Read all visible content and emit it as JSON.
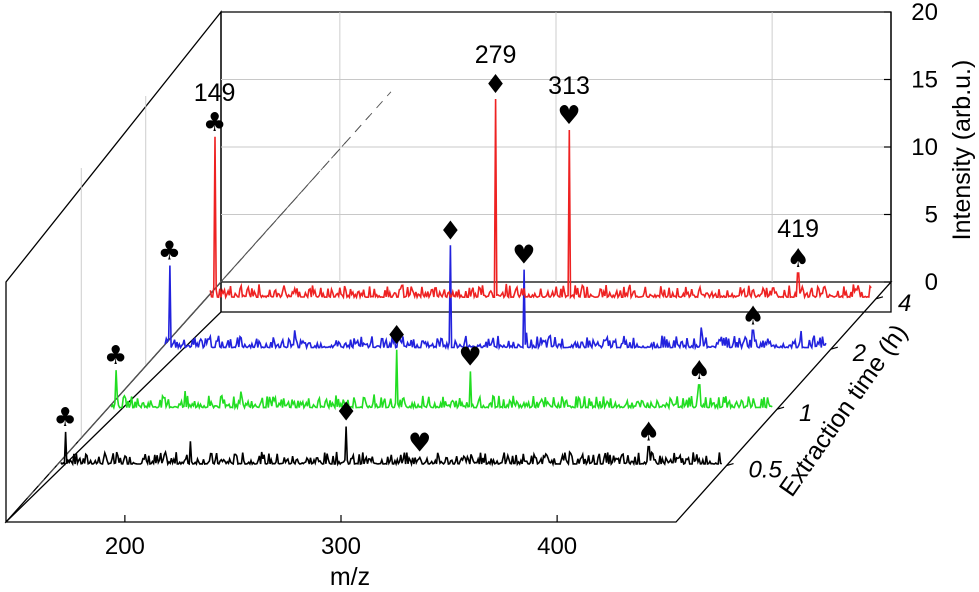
{
  "chart_data": {
    "type": "line",
    "subtype": "waterfall-3d",
    "xlabel": "m/z",
    "ylabel": "Intensity (arb.u.)",
    "zlabel": "Extraction time (h)",
    "xlim": [
      145,
      455
    ],
    "ylim": [
      0,
      20
    ],
    "x_ticks": [
      "200",
      "300",
      "400"
    ],
    "y_ticks": [
      "0",
      "5",
      "10",
      "15",
      "20"
    ],
    "z_ticks": [
      "0.5",
      "1",
      "2",
      "4"
    ],
    "grid": true,
    "series": [
      {
        "name": "0.5",
        "color": "#000000",
        "peaks": [
          {
            "mz": 149,
            "intensity": 2.5,
            "marker": "♣"
          },
          {
            "mz": 173,
            "intensity": 1.0,
            "marker": ""
          },
          {
            "mz": 207,
            "intensity": 1.8,
            "marker": ""
          },
          {
            "mz": 279,
            "intensity": 2.9,
            "marker": "♦"
          },
          {
            "mz": 313,
            "intensity": 0.6,
            "marker": "♥"
          },
          {
            "mz": 419,
            "intensity": 1.4,
            "marker": "♠"
          }
        ]
      },
      {
        "name": "1",
        "color": "#22dd22",
        "peaks": [
          {
            "mz": 149,
            "intensity": 2.9,
            "marker": "♣"
          },
          {
            "mz": 207,
            "intensity": 1.3,
            "marker": ""
          },
          {
            "mz": 279,
            "intensity": 4.4,
            "marker": "♦"
          },
          {
            "mz": 313,
            "intensity": 2.8,
            "marker": "♥"
          },
          {
            "mz": 419,
            "intensity": 1.8,
            "marker": "♠"
          }
        ]
      },
      {
        "name": "2",
        "color": "#2222dd",
        "peaks": [
          {
            "mz": 149,
            "intensity": 6.2,
            "marker": "♣"
          },
          {
            "mz": 207,
            "intensity": 1.4,
            "marker": ""
          },
          {
            "mz": 279,
            "intensity": 7.7,
            "marker": "♦"
          },
          {
            "mz": 313,
            "intensity": 5.9,
            "marker": "♥"
          },
          {
            "mz": 419,
            "intensity": 1.4,
            "marker": "♠"
          }
        ]
      },
      {
        "name": "4",
        "color": "#ee2222",
        "peaks": [
          {
            "mz": 149,
            "intensity": 12.0,
            "marker": "♣",
            "label": "149"
          },
          {
            "mz": 279,
            "intensity": 14.8,
            "marker": "♦",
            "label": "279"
          },
          {
            "mz": 313,
            "intensity": 12.5,
            "marker": "♥",
            "label": "313"
          },
          {
            "mz": 373,
            "intensity": 0.6,
            "marker": ""
          },
          {
            "mz": 419,
            "intensity": 1.9,
            "marker": "♠",
            "label": "419"
          }
        ]
      }
    ]
  }
}
